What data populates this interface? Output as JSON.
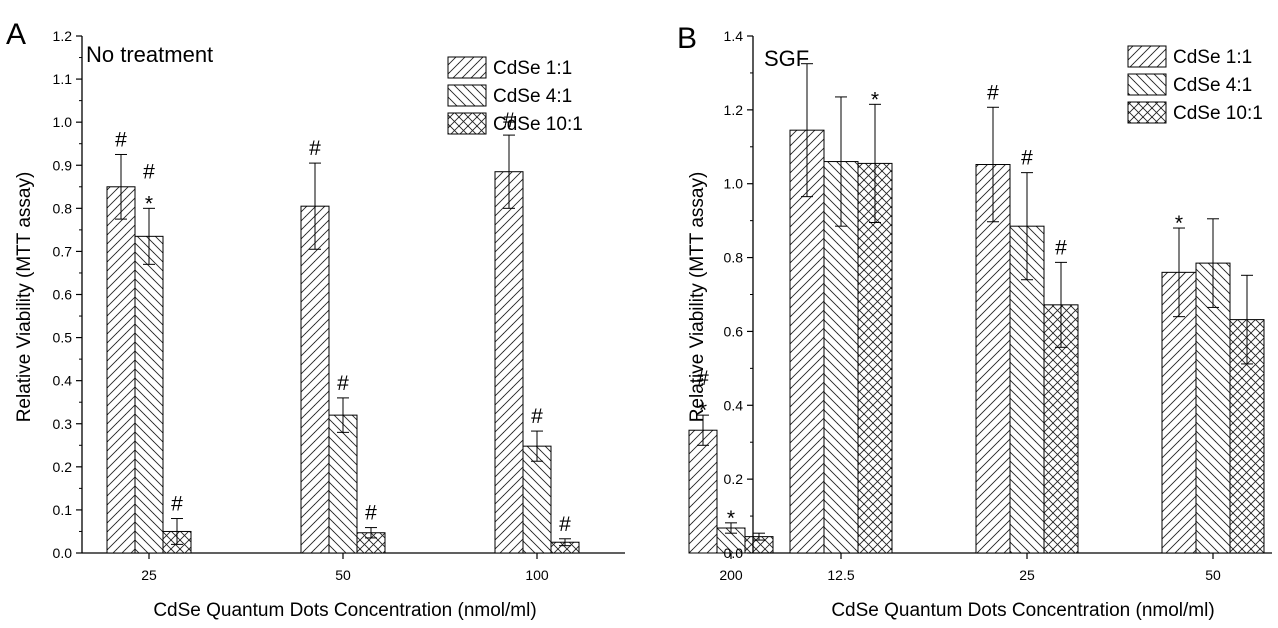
{
  "chart_data": [
    {
      "panel": "A",
      "type": "bar",
      "condition": "No treatment",
      "xlabel": "CdSe Quantum Dots Concentration (nmol/ml)",
      "ylabel": "Relative Viability (MTT assay)",
      "ylim": [
        0,
        1.2
      ],
      "yticks": [
        "0.0",
        "0.1",
        "0.2",
        "0.3",
        "0.4",
        "0.5",
        "0.6",
        "0.7",
        "0.8",
        "0.9",
        "1.0",
        "1.1",
        "1.2"
      ],
      "categories": [
        "25",
        "50",
        "100",
        "200"
      ],
      "legend": "top-right",
      "grid": false,
      "series": [
        {
          "name": "CdSe 1:1",
          "pattern": "diag-right",
          "values": [
            0.85,
            0.805,
            0.885,
            0.285
          ],
          "errors": [
            0.075,
            0.1,
            0.085,
            0.035
          ],
          "markers": [
            "#",
            "#",
            "#",
            "#*"
          ]
        },
        {
          "name": "CdSe 4:1",
          "pattern": "diag-left",
          "values": [
            0.735,
            0.32,
            0.248,
            0.058
          ],
          "errors": [
            0.065,
            0.04,
            0.035,
            0.012
          ],
          "markers": [
            "#*",
            "#",
            "#",
            "*"
          ]
        },
        {
          "name": "CdSe 10:1",
          "pattern": "cross",
          "values": [
            0.05,
            0.047,
            0.025,
            0.038
          ],
          "errors": [
            0.03,
            0.012,
            0.008,
            0.008
          ],
          "markers": [
            "#",
            "#",
            "#",
            ""
          ]
        }
      ]
    },
    {
      "panel": "B",
      "type": "bar",
      "condition": "SGF",
      "xlabel": "CdSe Quantum Dots Concentration (nmol/ml)",
      "ylabel": "Relative Viability (MTT assay)",
      "ylim": [
        0,
        1.4
      ],
      "yticks": [
        "0.0",
        "0.2",
        "0.4",
        "0.6",
        "0.8",
        "1.0",
        "1.2",
        "1.4"
      ],
      "categories": [
        "12.5",
        "25",
        "50"
      ],
      "legend": "top-right",
      "grid": false,
      "series": [
        {
          "name": "CdSe 1:1",
          "pattern": "diag-right",
          "values": [
            1.145,
            1.052,
            0.76
          ],
          "errors": [
            0.18,
            0.155,
            0.12
          ],
          "markers": [
            "",
            "#",
            "*"
          ]
        },
        {
          "name": "CdSe 4:1",
          "pattern": "diag-left",
          "values": [
            1.06,
            0.885,
            0.785
          ],
          "errors": [
            0.175,
            0.145,
            0.12
          ],
          "markers": [
            "",
            "#",
            ""
          ]
        },
        {
          "name": "CdSe 10:1",
          "pattern": "cross",
          "values": [
            1.055,
            0.672,
            0.632
          ],
          "errors": [
            0.16,
            0.115,
            0.12
          ],
          "markers": [
            "*",
            "#",
            ""
          ]
        }
      ]
    }
  ]
}
